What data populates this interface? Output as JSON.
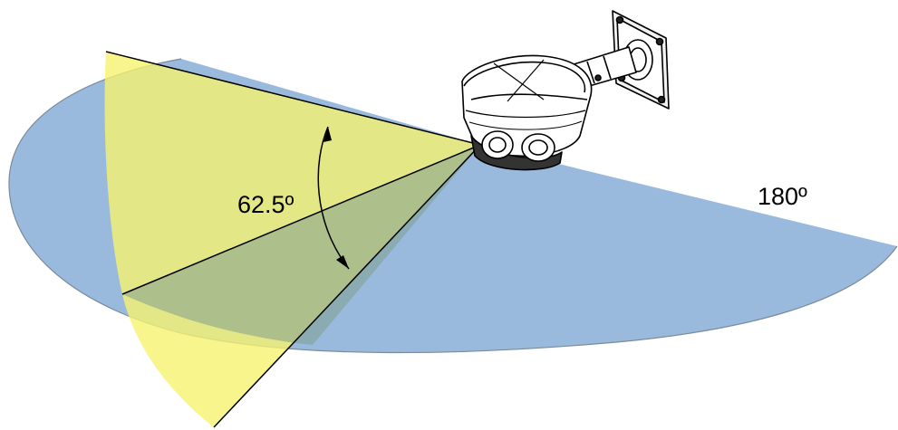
{
  "diagram": {
    "vertical_angle_label": "62.5º",
    "horizontal_angle_label": "180º",
    "colors": {
      "horizontal_fov_fill": "#8fb3d9",
      "vertical_fov_fill": "#f4f07a",
      "overlap_fill": "#8ea59a",
      "outline": "#000000"
    },
    "icons": {
      "camera": "wall-mounted-dome-camera-icon",
      "angle_arrow": "double-headed-curved-arrow-icon"
    }
  }
}
